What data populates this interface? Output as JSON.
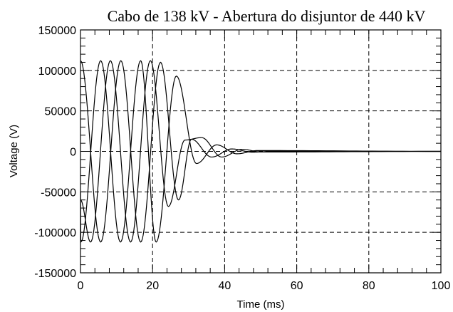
{
  "chart_data": {
    "type": "line",
    "title": "Cabo de 138 kV - Abertura do disjuntor de 440 kV",
    "xlabel": "Time (ms)",
    "ylabel": "Voltage (V)",
    "xlim": [
      0,
      100
    ],
    "ylim": [
      -150000,
      150000
    ],
    "x_ticks": [
      0,
      20,
      40,
      60,
      80,
      100
    ],
    "y_ticks": [
      150000,
      100000,
      50000,
      0,
      -50000,
      -100000,
      -150000
    ],
    "x_tick_labels": [
      "0",
      "20",
      "40",
      "60",
      "80",
      "100"
    ],
    "y_tick_labels": [
      "150000",
      "100000",
      "50000",
      "0",
      "-50000",
      "-100000",
      "-150000"
    ],
    "grid": true,
    "grid_style": "dashed",
    "series": [
      {
        "x": [
          0,
          5.6,
          11.2,
          16.7,
          22.2,
          27.2,
          30.8,
          36.4,
          42.0,
          47.6,
          53.2,
          100
        ],
        "values": [
          112000,
          -112000,
          112000,
          -112000,
          110000,
          -60000,
          15000,
          -7000,
          3000,
          -1000,
          0,
          0
        ]
      },
      {
        "x": [
          0,
          2.8,
          8.3,
          13.9,
          19.4,
          24.4,
          29.0,
          33.6,
          39.2,
          44.8,
          50.4,
          100
        ],
        "values": [
          -60000,
          -112000,
          112000,
          -112000,
          112000,
          -68000,
          14000,
          17000,
          -7000,
          2500,
          -800,
          0
        ]
      },
      {
        "x": [
          0,
          0.1,
          5.6,
          11.1,
          16.7,
          21.0,
          26.6,
          32.2,
          37.8,
          43.4,
          49.0,
          100
        ],
        "values": [
          -50000,
          -112000,
          112000,
          -112000,
          112000,
          -112000,
          93000,
          -15000,
          8000,
          -3000,
          1000,
          0
        ]
      }
    ]
  }
}
